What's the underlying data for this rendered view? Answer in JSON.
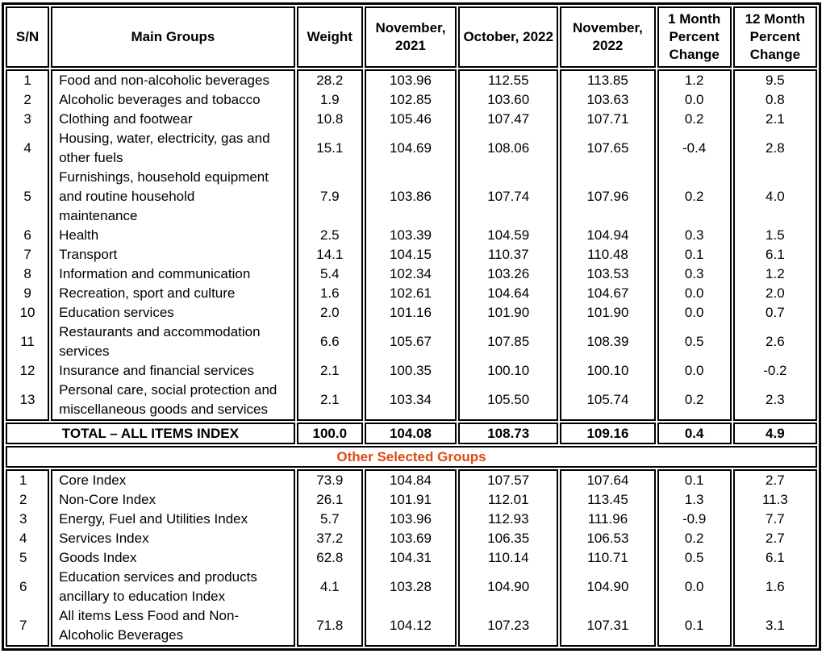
{
  "colors": {
    "accent_orange": "#DD4B14",
    "border_black": "#000000"
  },
  "table": {
    "headers": [
      "S/N",
      "Main Groups",
      "Weight",
      "November, 2021",
      "October, 2022",
      "November, 2022",
      "1 Month Percent Change",
      "12 Month Percent Change"
    ],
    "main_groups": [
      {
        "sn": "1",
        "name": "Food and non-alcoholic beverages",
        "weight": "28.2",
        "nov2021": "103.96",
        "oct2022": "112.55",
        "nov2022": "113.85",
        "m1": "1.2",
        "m12": "9.5"
      },
      {
        "sn": "2",
        "name": "Alcoholic beverages and tobacco",
        "weight": "1.9",
        "nov2021": "102.85",
        "oct2022": "103.60",
        "nov2022": "103.63",
        "m1": "0.0",
        "m12": "0.8"
      },
      {
        "sn": "3",
        "name": "Clothing and footwear",
        "weight": "10.8",
        "nov2021": "105.46",
        "oct2022": "107.47",
        "nov2022": "107.71",
        "m1": "0.2",
        "m12": "2.1"
      },
      {
        "sn": "4",
        "name": "Housing, water, electricity, gas and\nother fuels",
        "weight": "15.1",
        "nov2021": "104.69",
        "oct2022": "108.06",
        "nov2022": "107.65",
        "m1": "-0.4",
        "m12": "2.8"
      },
      {
        "sn": "5",
        "name": "Furnishings, household equipment\nand routine household\nmaintenance",
        "weight": "7.9",
        "nov2021": "103.86",
        "oct2022": "107.74",
        "nov2022": "107.96",
        "m1": "0.2",
        "m12": "4.0"
      },
      {
        "sn": "6",
        "name": "Health",
        "weight": "2.5",
        "nov2021": "103.39",
        "oct2022": "104.59",
        "nov2022": "104.94",
        "m1": "0.3",
        "m12": "1.5"
      },
      {
        "sn": "7",
        "name": "Transport",
        "weight": "14.1",
        "nov2021": "104.15",
        "oct2022": "110.37",
        "nov2022": "110.48",
        "m1": "0.1",
        "m12": "6.1"
      },
      {
        "sn": "8",
        "name": "Information and communication",
        "weight": "5.4",
        "nov2021": "102.34",
        "oct2022": "103.26",
        "nov2022": "103.53",
        "m1": "0.3",
        "m12": "1.2"
      },
      {
        "sn": "9",
        "name": "Recreation, sport and culture",
        "weight": "1.6",
        "nov2021": "102.61",
        "oct2022": "104.64",
        "nov2022": "104.67",
        "m1": "0.0",
        "m12": "2.0"
      },
      {
        "sn": "10",
        "name": "Education services",
        "weight": "2.0",
        "nov2021": "101.16",
        "oct2022": "101.90",
        "nov2022": "101.90",
        "m1": "0.0",
        "m12": "0.7"
      },
      {
        "sn": "11",
        "name": "Restaurants and accommodation\nservices",
        "weight": "6.6",
        "nov2021": "105.67",
        "oct2022": "107.85",
        "nov2022": "108.39",
        "m1": "0.5",
        "m12": "2.6"
      },
      {
        "sn": "12",
        "name": "Insurance and financial services",
        "weight": "2.1",
        "nov2021": "100.35",
        "oct2022": "100.10",
        "nov2022": "100.10",
        "m1": "0.0",
        "m12": "-0.2"
      },
      {
        "sn": "13",
        "name": "Personal care, social protection and\nmiscellaneous goods and services",
        "weight": "2.1",
        "nov2021": "103.34",
        "oct2022": "105.50",
        "nov2022": "105.74",
        "m1": "0.2",
        "m12": "2.3"
      }
    ],
    "total": {
      "label": "TOTAL – ALL ITEMS INDEX",
      "weight": "100.0",
      "nov2021": "104.08",
      "oct2022": "108.73",
      "nov2022": "109.16",
      "m1": "0.4",
      "m12": "4.9"
    },
    "section_title": "Other Selected Groups",
    "other_groups": [
      {
        "sn": "1",
        "name": "Core Index",
        "weight": "73.9",
        "nov2021": "104.84",
        "oct2022": "107.57",
        "nov2022": "107.64",
        "m1": "0.1",
        "m12": "2.7"
      },
      {
        "sn": "2",
        "name": "Non-Core Index",
        "weight": "26.1",
        "nov2021": "101.91",
        "oct2022": "112.01",
        "nov2022": "113.45",
        "m1": "1.3",
        "m12": "11.3"
      },
      {
        "sn": "3",
        "name": "Energy, Fuel and Utilities Index",
        "weight": "5.7",
        "nov2021": "103.96",
        "oct2022": "112.93",
        "nov2022": "111.96",
        "m1": "-0.9",
        "m12": "7.7"
      },
      {
        "sn": "4",
        "name": "Services Index",
        "weight": "37.2",
        "nov2021": "103.69",
        "oct2022": "106.35",
        "nov2022": "106.53",
        "m1": "0.2",
        "m12": "2.7"
      },
      {
        "sn": "5",
        "name": "Goods Index",
        "weight": "62.8",
        "nov2021": "104.31",
        "oct2022": "110.14",
        "nov2022": "110.71",
        "m1": "0.5",
        "m12": "6.1"
      },
      {
        "sn": "6",
        "name": "Education services and products\nancillary to education Index",
        "weight": "4.1",
        "nov2021": "103.28",
        "oct2022": "104.90",
        "nov2022": "104.90",
        "m1": "0.0",
        "m12": "1.6"
      },
      {
        "sn": "7",
        "name": "All items Less Food and Non-\nAlcoholic Beverages",
        "weight": "71.8",
        "nov2021": "104.12",
        "oct2022": "107.23",
        "nov2022": "107.31",
        "m1": "0.1",
        "m12": "3.1"
      }
    ]
  }
}
